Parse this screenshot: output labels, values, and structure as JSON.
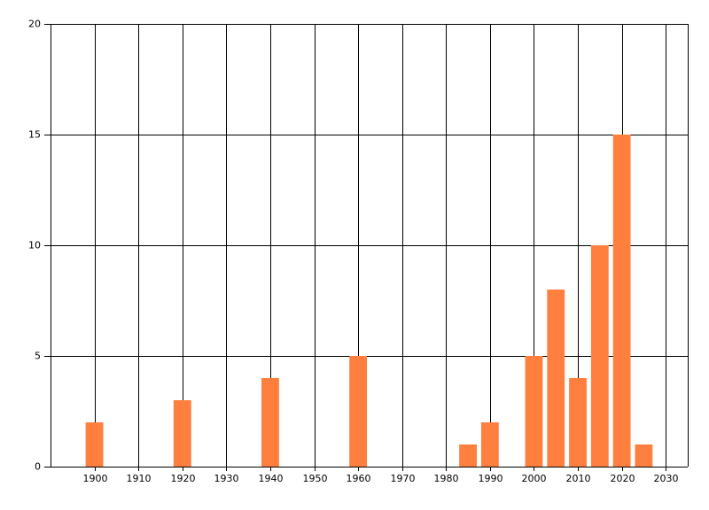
{
  "chart_data": {
    "type": "bar",
    "x": [
      1900,
      1920,
      1940,
      1960,
      1985,
      1990,
      2000,
      2005,
      2010,
      2015,
      2020,
      2025
    ],
    "values": [
      2,
      3,
      4,
      5,
      1,
      2,
      5,
      8,
      4,
      10,
      15,
      1
    ],
    "color": "#ff7f3f",
    "xlim": [
      1890,
      2035
    ],
    "xticks": [
      1900,
      1910,
      1920,
      1930,
      1940,
      1950,
      1960,
      1970,
      1980,
      1990,
      2000,
      2010,
      2020,
      2030
    ],
    "ylim": [
      0,
      20
    ],
    "yticks": [
      0,
      5,
      10,
      15,
      20
    ],
    "grid": true
  }
}
